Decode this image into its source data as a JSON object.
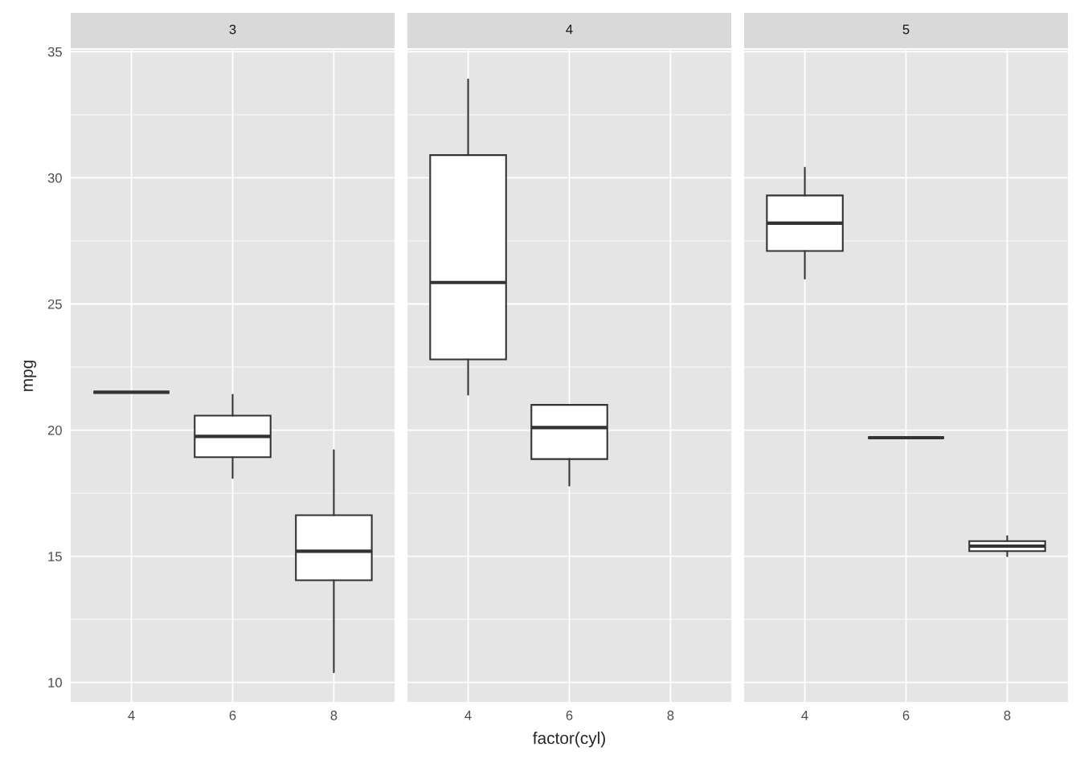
{
  "chart_data": [
    {
      "type": "box",
      "title": "3",
      "ylabel": "mpg",
      "categories": [
        "4",
        "6",
        "8"
      ],
      "ylim": [
        9.225,
        35.075
      ],
      "yticks": [
        10,
        15,
        20,
        25,
        30,
        35
      ],
      "grid": true,
      "boxes": [
        {
          "low": 21.5,
          "q1": 21.5,
          "median": 21.5,
          "q3": 21.5,
          "high": 21.5
        },
        {
          "low": 18.1,
          "q1": 18.925,
          "median": 19.75,
          "q3": 20.575,
          "high": 21.4
        },
        {
          "low": 10.4,
          "q1": 14.05,
          "median": 15.2,
          "q3": 16.625,
          "high": 19.2
        }
      ]
    },
    {
      "type": "box",
      "title": "4",
      "xlabel": "factor(cyl)",
      "categories": [
        "4",
        "6",
        "8"
      ],
      "ylim": [
        9.225,
        35.075
      ],
      "yticks": [
        10,
        15,
        20,
        25,
        30,
        35
      ],
      "grid": true,
      "tick_labels": "x",
      "boxes": [
        {
          "low": 21.4,
          "q1": 22.8,
          "median": 25.85,
          "q3": 30.9,
          "high": 33.9
        },
        {
          "low": 17.8,
          "q1": 18.85,
          "median": 20.1,
          "q3": 21.0,
          "high": 21.0
        },
        null
      ]
    },
    {
      "type": "box",
      "title": "5",
      "categories": [
        "4",
        "6",
        "8"
      ],
      "ylim": [
        9.225,
        35.075
      ],
      "yticks": [
        10,
        15,
        20,
        25,
        30,
        35
      ],
      "grid": true,
      "tick_labels": "x",
      "boxes": [
        {
          "low": 26.0,
          "q1": 27.1,
          "median": 28.2,
          "q3": 29.3,
          "high": 30.4
        },
        {
          "low": 19.7,
          "q1": 19.7,
          "median": 19.7,
          "q3": 19.7,
          "high": 19.7
        },
        {
          "low": 15.0,
          "q1": 15.2,
          "median": 15.4,
          "q3": 15.6,
          "high": 15.8
        }
      ]
    }
  ]
}
